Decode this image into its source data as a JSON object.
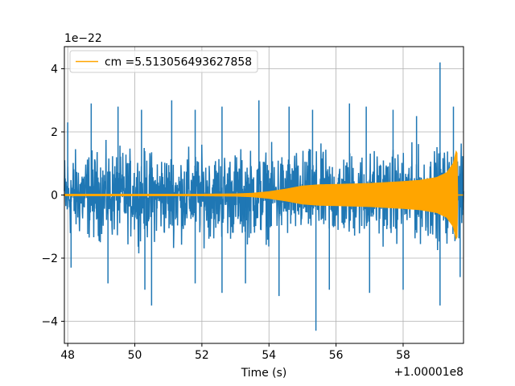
{
  "chart_data": {
    "type": "line",
    "title": "",
    "xlabel": "Time (s)",
    "ylabel": "",
    "x_offset_label": "+1.00001e8",
    "y_scale_label": "1e−22",
    "xlim": [
      47.9,
      59.8
    ],
    "ylim": [
      -4.7,
      4.7
    ],
    "x_ticks": [
      48,
      50,
      52,
      54,
      56,
      58
    ],
    "x_tick_labels": [
      "48",
      "50",
      "52",
      "54",
      "56",
      "58"
    ],
    "y_ticks": [
      -4,
      -2,
      0,
      2,
      4
    ],
    "y_tick_labels": [
      "−4",
      "−2",
      "0",
      "2",
      "4"
    ],
    "grid": true,
    "legend_position": "top-left",
    "colors": {
      "noise": "#1f77b4",
      "signal": "#ffa500",
      "grid": "#b0b0b0"
    },
    "series": [
      {
        "kind": "noise-strain",
        "x_range": [
          47.9,
          59.8
        ],
        "envelope_x": [
          48,
          50,
          52,
          54,
          56,
          58,
          59.3,
          59.8
        ],
        "envelope_y": [
          1.5,
          1.5,
          1.5,
          1.5,
          1.5,
          1.5,
          1.6,
          1.5
        ],
        "peaks": [
          {
            "x": 48.0,
            "y": 2.3
          },
          {
            "x": 48.7,
            "y": 2.9
          },
          {
            "x": 49.5,
            "y": 2.8
          },
          {
            "x": 50.2,
            "y": 2.7
          },
          {
            "x": 51.1,
            "y": 3.0
          },
          {
            "x": 51.8,
            "y": 2.7
          },
          {
            "x": 52.6,
            "y": 2.8
          },
          {
            "x": 53.7,
            "y": 3.0
          },
          {
            "x": 54.6,
            "y": 2.8
          },
          {
            "x": 55.3,
            "y": 2.7
          },
          {
            "x": 56.4,
            "y": 2.9
          },
          {
            "x": 56.9,
            "y": 2.8
          },
          {
            "x": 57.7,
            "y": 2.7
          },
          {
            "x": 58.4,
            "y": 2.5
          },
          {
            "x": 59.1,
            "y": 4.2
          },
          {
            "x": 59.5,
            "y": 2.8
          }
        ],
        "troughs": [
          {
            "x": 48.1,
            "y": -2.3
          },
          {
            "x": 49.2,
            "y": -2.8
          },
          {
            "x": 50.3,
            "y": -3.0
          },
          {
            "x": 50.5,
            "y": -3.5
          },
          {
            "x": 51.8,
            "y": -2.8
          },
          {
            "x": 52.6,
            "y": -3.1
          },
          {
            "x": 53.3,
            "y": -2.8
          },
          {
            "x": 54.3,
            "y": -3.2
          },
          {
            "x": 55.4,
            "y": -4.3
          },
          {
            "x": 55.8,
            "y": -3.0
          },
          {
            "x": 57.0,
            "y": -3.1
          },
          {
            "x": 58.0,
            "y": -3.0
          },
          {
            "x": 59.1,
            "y": -3.5
          },
          {
            "x": 59.7,
            "y": -2.6
          }
        ]
      },
      {
        "name": "cm =5.513056493627858",
        "kind": "chirp",
        "envelope_x": [
          47.9,
          52.0,
          53.0,
          53.5,
          54.0,
          54.5,
          55.0,
          55.5,
          56.0,
          57.0,
          58.0,
          58.5,
          59.0,
          59.3,
          59.5,
          59.6,
          59.62,
          59.8
        ],
        "envelope_y": [
          0.02,
          0.02,
          0.03,
          0.05,
          0.1,
          0.18,
          0.28,
          0.32,
          0.33,
          0.36,
          0.42,
          0.46,
          0.55,
          0.7,
          1.0,
          1.45,
          0.0,
          0.0
        ]
      }
    ]
  }
}
